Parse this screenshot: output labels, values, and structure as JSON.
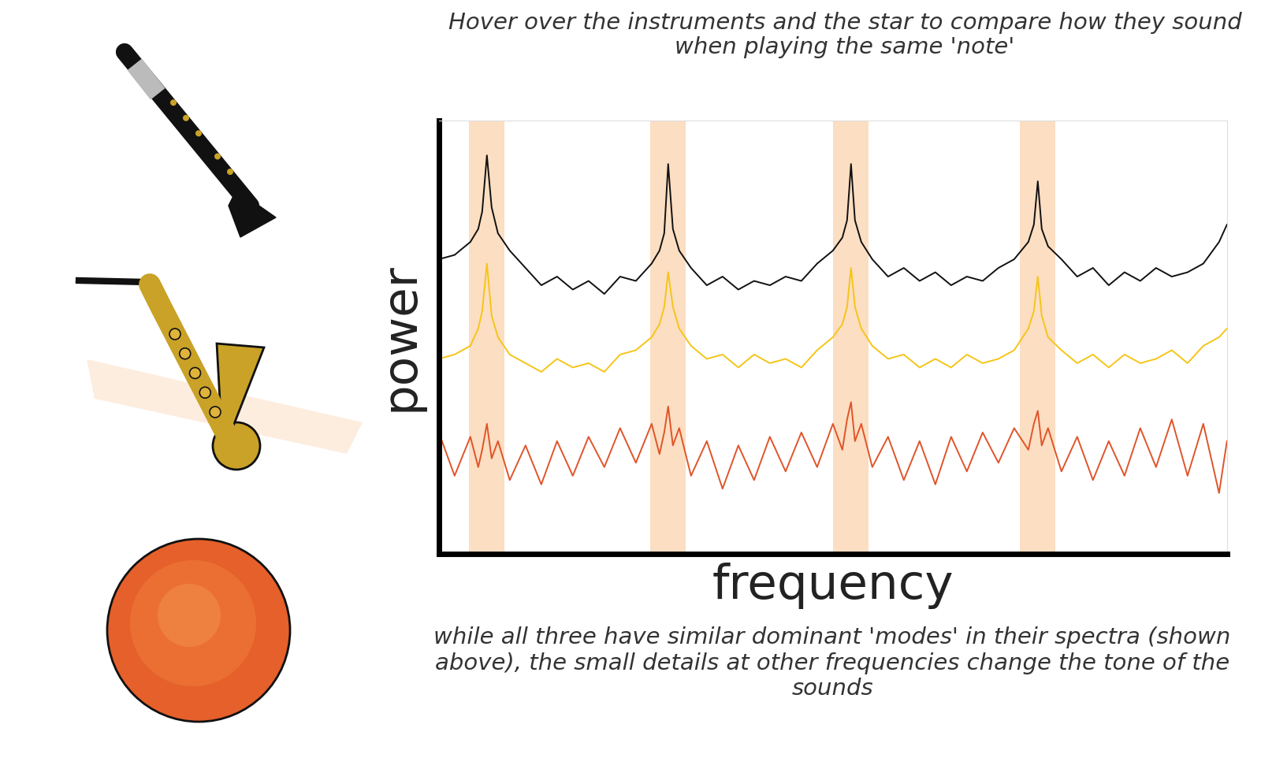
{
  "chart_data": {
    "type": "line",
    "title": "Hover over the instruments and the star to compare how they sound when playing the same 'note'",
    "caption": "while all three have similar dominant 'modes' in their spectra (shown above), the small details at other frequencies change the tone of the sounds",
    "x_label": "frequency",
    "y_label": "power",
    "tick_labels": false,
    "grid": false,
    "xlim": [
      0,
      100
    ],
    "ylim": [
      0,
      100
    ],
    "xticks": [],
    "yticks": [],
    "highlight_bands": [
      6.1,
      29.1,
      52.3,
      76.0
    ],
    "x": [
      0,
      2,
      4,
      5,
      5.5,
      6.1,
      6.7,
      7.5,
      9,
      11,
      13,
      15,
      17,
      19,
      21,
      23,
      25,
      27,
      28,
      28.6,
      29.1,
      29.7,
      30.5,
      32,
      34,
      36,
      38,
      40,
      42,
      44,
      46,
      48,
      50,
      51.2,
      51.8,
      52.3,
      52.8,
      53.6,
      55,
      57,
      59,
      61,
      63,
      65,
      67,
      69,
      71,
      73,
      74.8,
      75.5,
      76.0,
      76.5,
      77.3,
      79,
      81,
      83,
      85,
      87,
      89,
      91,
      93,
      95,
      97,
      99,
      100
    ],
    "series": [
      {
        "color": "#111111",
        "values": [
          68,
          69,
          72,
          75,
          79,
          92,
          80,
          74,
          70,
          66,
          62,
          64,
          61,
          63,
          60,
          64,
          63,
          67,
          70,
          74,
          90,
          75,
          70,
          66,
          62,
          64,
          61,
          63,
          62,
          64,
          63,
          67,
          70,
          73,
          77,
          90,
          77,
          72,
          68,
          64,
          66,
          63,
          65,
          62,
          64,
          63,
          66,
          68,
          72,
          76,
          86,
          75,
          71,
          68,
          64,
          66,
          62,
          65,
          63,
          66,
          64,
          65,
          67,
          72,
          76
        ]
      },
      {
        "color": "#f5c518",
        "values": [
          45,
          46,
          48,
          52,
          56,
          67,
          55,
          50,
          46,
          44,
          42,
          45,
          43,
          44,
          42,
          46,
          47,
          50,
          53,
          57,
          65,
          57,
          52,
          48,
          45,
          46,
          43,
          46,
          44,
          45,
          43,
          47,
          50,
          53,
          57,
          66,
          57,
          52,
          48,
          45,
          46,
          43,
          45,
          43,
          46,
          44,
          45,
          47,
          52,
          56,
          64,
          55,
          50,
          47,
          44,
          46,
          43,
          46,
          44,
          45,
          47,
          44,
          48,
          50,
          52
        ]
      },
      {
        "color": "#e0542a",
        "values": [
          28,
          18,
          27,
          20,
          24,
          30,
          22,
          26,
          17,
          25,
          16,
          26,
          18,
          27,
          20,
          29,
          21,
          30,
          23,
          28,
          34,
          25,
          29,
          18,
          26,
          15,
          25,
          17,
          27,
          19,
          28,
          20,
          30,
          24,
          31,
          35,
          26,
          30,
          20,
          27,
          17,
          26,
          16,
          27,
          19,
          28,
          21,
          29,
          24,
          30,
          33,
          25,
          29,
          19,
          27,
          17,
          26,
          18,
          29,
          20,
          31,
          18,
          30,
          14,
          26
        ]
      }
    ]
  }
}
